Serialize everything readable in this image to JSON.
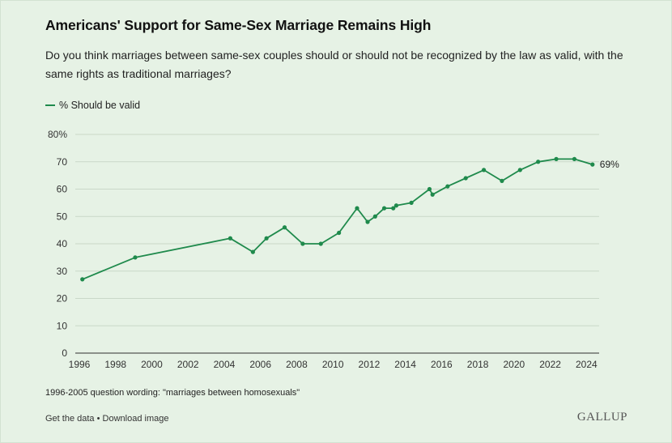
{
  "title": "Americans' Support for Same-Sex Marriage Remains High",
  "subtitle": "Do you think marriages between same-sex couples should or should not be recognized by the law as valid, with the same rights as traditional marriages?",
  "legend_label": "% Should be valid",
  "end_label": "69%",
  "footnote": "1996-2005 question wording: \"marriages between homosexuals\"",
  "links": {
    "get_data": "Get the data",
    "separator": "•",
    "download": "Download image"
  },
  "logo_text": "GALLUP",
  "colors": {
    "series": "#1f8a4c",
    "background": "#e6f2e5",
    "grid": "#c9d8c8"
  },
  "chart_data": {
    "type": "line",
    "title": "Americans' Support for Same-Sex Marriage Remains High",
    "xlabel": "",
    "ylabel": "",
    "xlim": [
      1996,
      2024.7
    ],
    "ylim": [
      0,
      80
    ],
    "x_ticks": [
      1996,
      1998,
      2000,
      2002,
      2004,
      2006,
      2008,
      2010,
      2012,
      2014,
      2016,
      2018,
      2020,
      2022,
      2024
    ],
    "y_ticks": [
      0,
      10,
      20,
      30,
      40,
      50,
      60,
      70,
      80
    ],
    "y_tick_labels": [
      "0",
      "10",
      "20",
      "30",
      "40",
      "50",
      "60",
      "70",
      "80%"
    ],
    "grid": "horizontal",
    "legend_position": "top-left",
    "series": [
      {
        "name": "% Should be valid",
        "x": [
          "1996-03",
          "1999-02",
          "2004-05",
          "2005-08",
          "2006-05",
          "2007-05",
          "2008-05",
          "2009-05",
          "2010-05",
          "2011-05",
          "2011-12",
          "2012-05",
          "2012-11",
          "2013-05",
          "2013-07",
          "2014-05",
          "2015-05",
          "2015-07",
          "2016-05",
          "2017-05",
          "2018-05",
          "2019-05",
          "2020-05",
          "2021-05",
          "2022-05",
          "2023-05",
          "2024-05"
        ],
        "values": [
          27,
          35,
          42,
          37,
          42,
          46,
          40,
          40,
          44,
          53,
          48,
          50,
          53,
          53,
          54,
          55,
          60,
          58,
          61,
          64,
          67,
          63,
          67,
          70,
          71,
          71,
          69
        ]
      }
    ]
  }
}
